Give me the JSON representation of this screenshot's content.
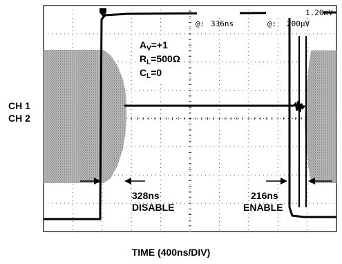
{
  "chart_data": {
    "type": "line",
    "xlabel": "TIME (400ns/DIV)",
    "channels": [
      "CH 1",
      "CH 2"
    ],
    "readout": {
      "left_label": "@:",
      "left_value": "336ns",
      "right_label": "@:",
      "right_value": "200µV",
      "top_right_value": "1.20mV"
    },
    "conditions": {
      "av_label": "A",
      "av_sub": "V",
      "av_value": "=+1",
      "rl_label": "R",
      "rl_sub": "L",
      "rl_value": "=500Ω",
      "cl_label": "C",
      "cl_sub": "L",
      "cl_value": "=0"
    },
    "annotations": [
      {
        "value": "328ns",
        "label": "DISABLE"
      },
      {
        "value": "216ns",
        "label": "ENABLE"
      }
    ]
  }
}
